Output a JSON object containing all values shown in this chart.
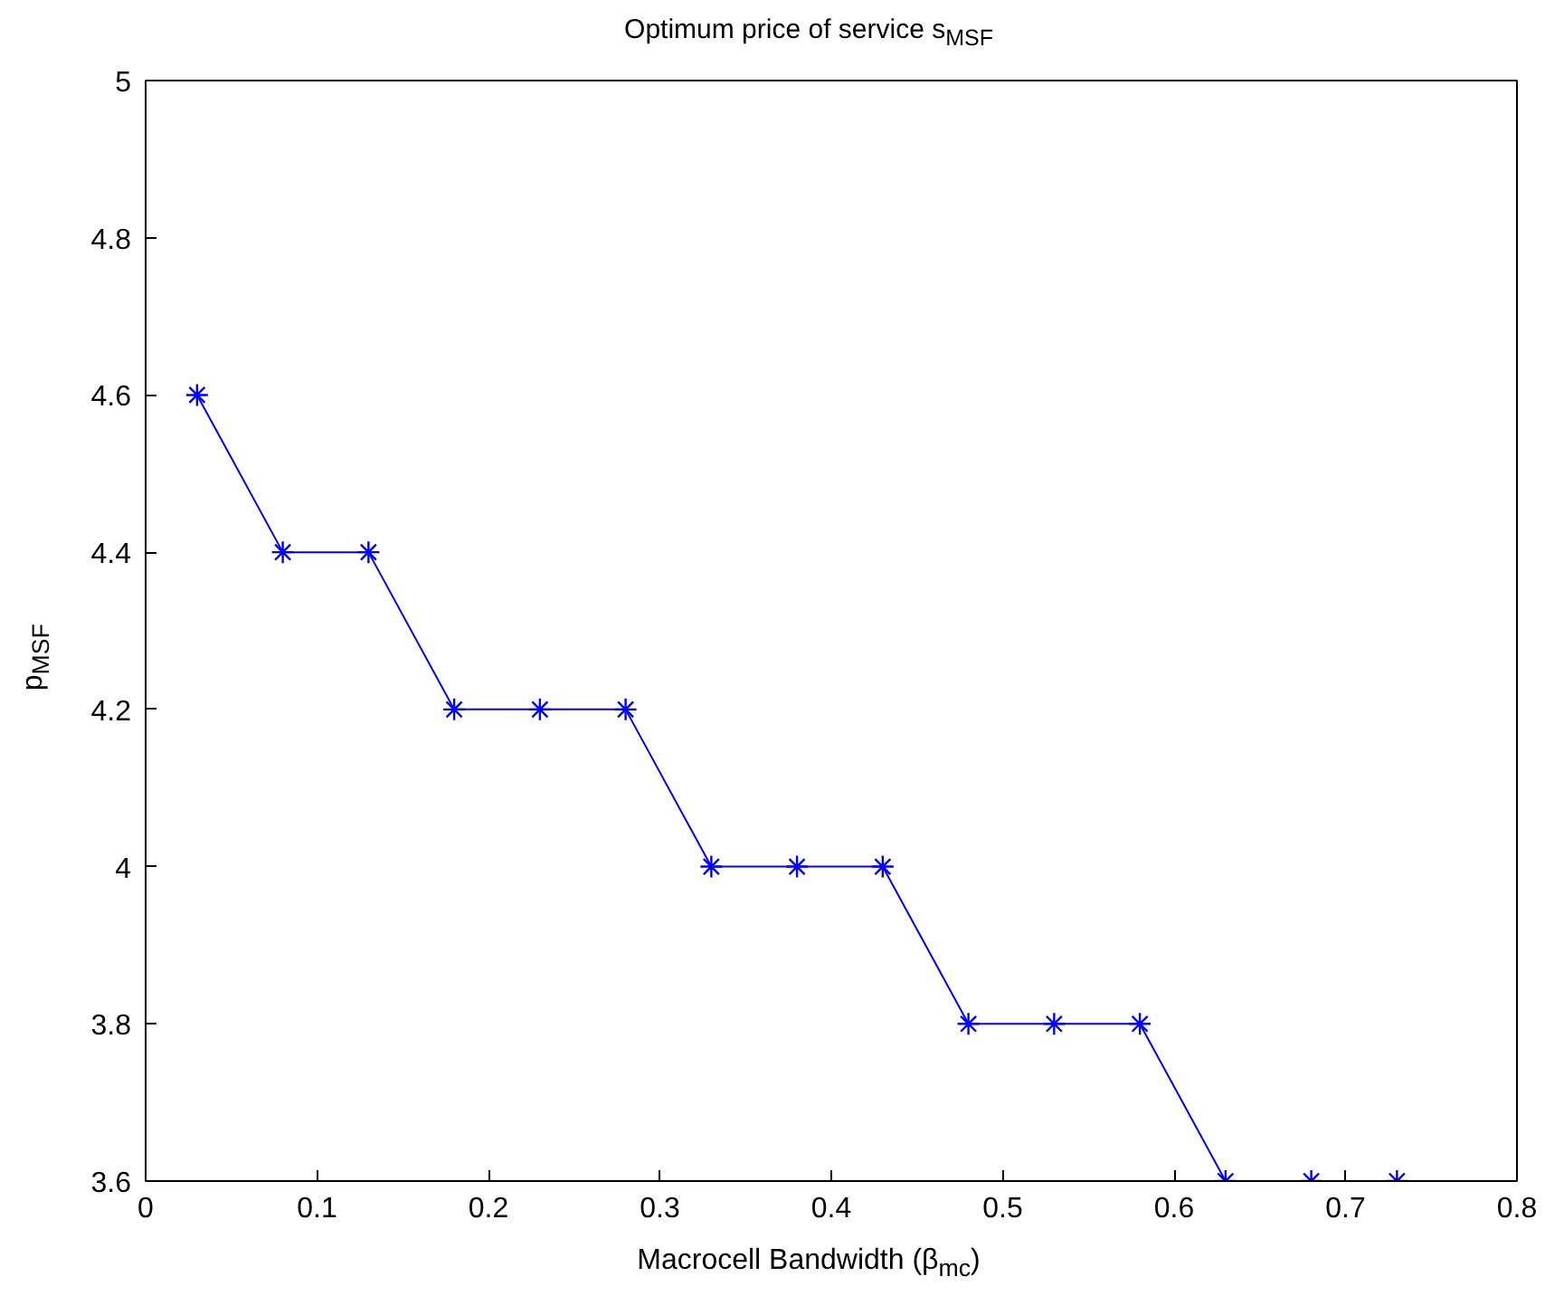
{
  "chart_data": {
    "type": "line",
    "title": "Optimum price of service s$_{MSF}$",
    "xlabel": "Macrocell Bandwidth (β$_{mc}$)",
    "ylabel": "p$_{MSF}$",
    "x": [
      0.03,
      0.08,
      0.13,
      0.18,
      0.23,
      0.28,
      0.33,
      0.38,
      0.43,
      0.48,
      0.53,
      0.58,
      0.63,
      0.68,
      0.73
    ],
    "series": [
      {
        "color": "#0000ff",
        "values": [
          4.6,
          4.4,
          4.4,
          4.2,
          4.2,
          4.2,
          4.0,
          4.0,
          4.0,
          3.8,
          3.8,
          3.8,
          3.6,
          3.6,
          3.6
        ]
      }
    ],
    "xlim": [
      0,
      0.8
    ],
    "ylim": [
      3.6,
      5
    ],
    "xticks": [
      0,
      0.1,
      0.2,
      0.3,
      0.4,
      0.5,
      0.6,
      0.7,
      0.8
    ],
    "yticks": [
      3.6,
      3.8,
      4,
      4.2,
      4.4,
      4.6,
      4.8,
      5
    ],
    "marker": "cross",
    "line_style": "solid",
    "grid": false
  }
}
